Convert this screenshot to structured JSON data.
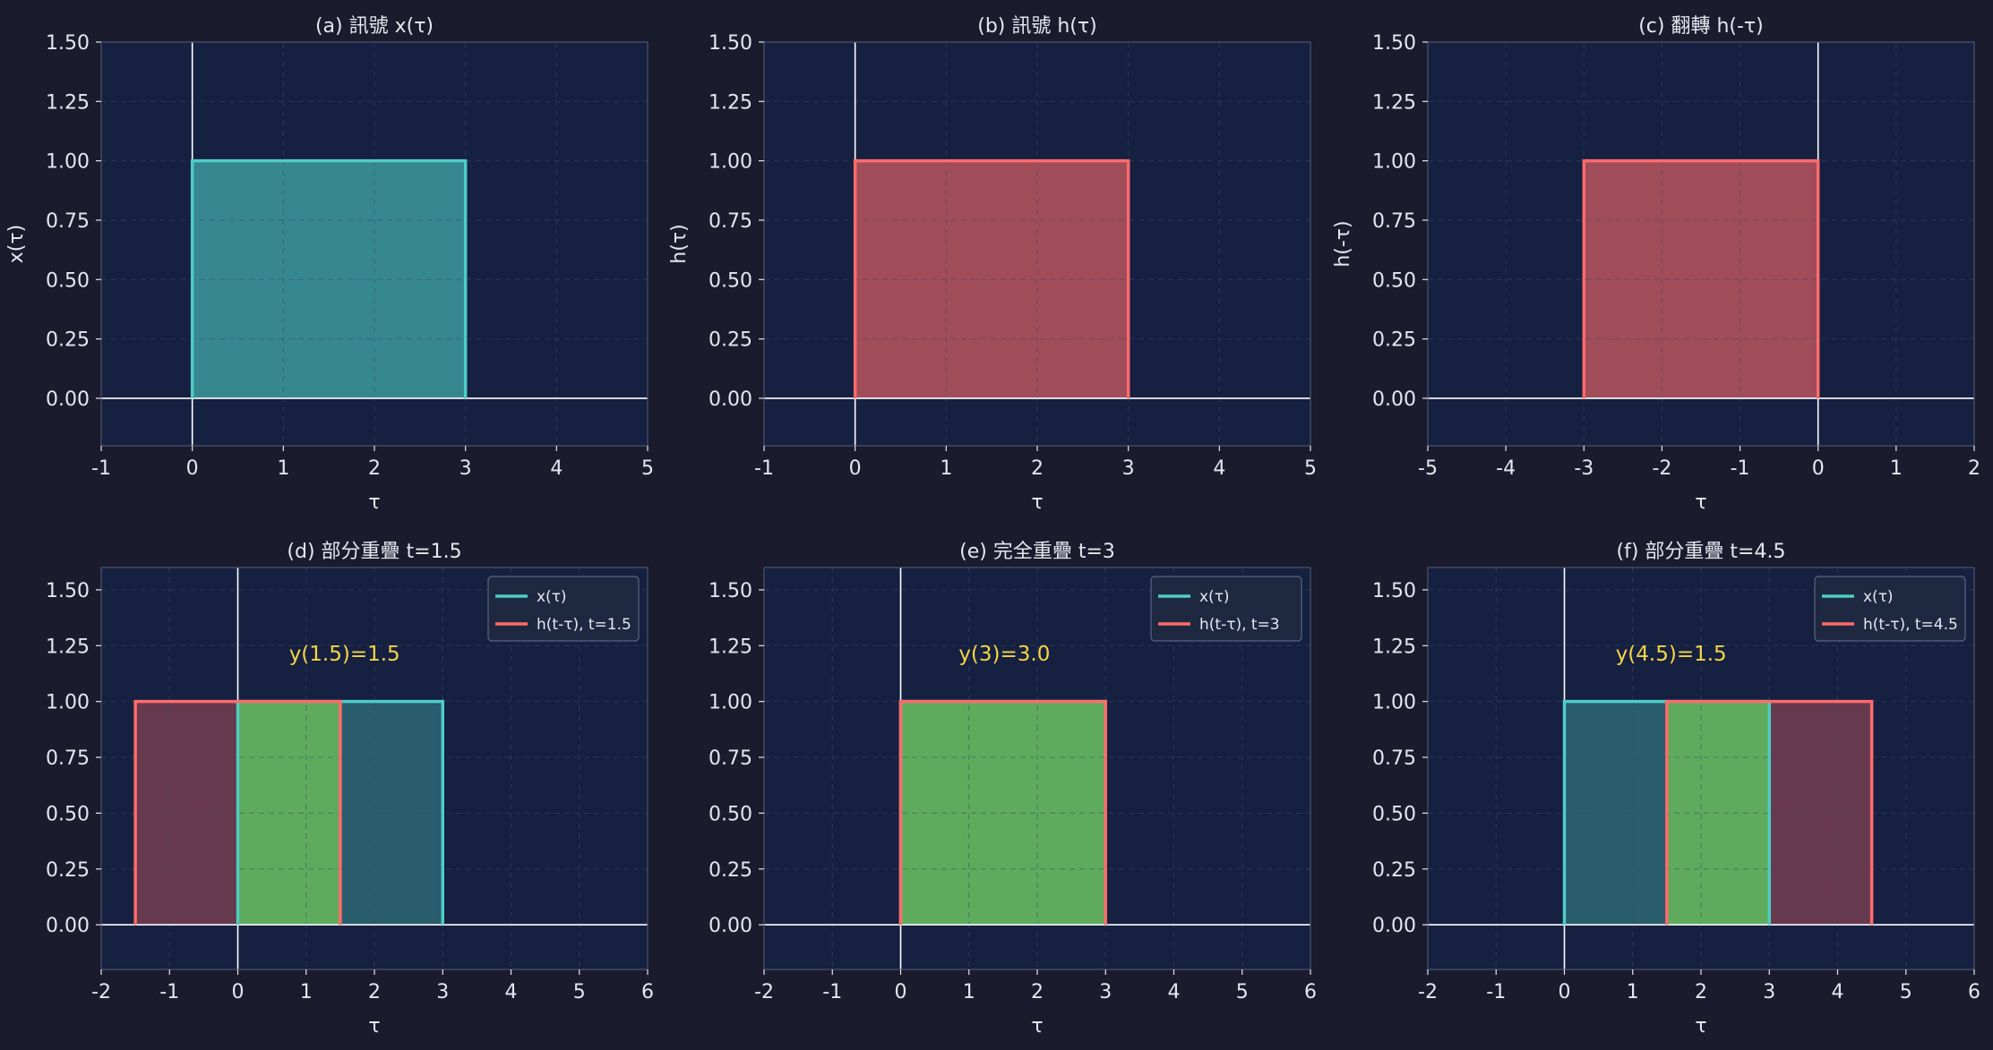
{
  "colors": {
    "background": "#1b1b2e",
    "axes_face": "#162040",
    "axes_border": "#4a5570",
    "grid": "#2a3755",
    "text": "#e6e6ee",
    "zero_line": "#ffffff",
    "x_signal": "#4ecdc4",
    "h_signal": "#ff6b6b",
    "overlap": "#5cb85c",
    "annotation": "#f5d547",
    "legend_bg": "#1e2840",
    "legend_border": "#5a6580"
  },
  "chart_data": [
    {
      "type": "area",
      "title": "(a) 訊號 x(τ)",
      "xlabel": "τ",
      "ylabel": "x(τ)",
      "xlim": [
        -1,
        5
      ],
      "ylim": [
        -0.2,
        1.5
      ],
      "xticks": [
        -1,
        0,
        1,
        2,
        3,
        4,
        5
      ],
      "yticks": [
        0,
        0.25,
        0.5,
        0.75,
        1,
        1.25,
        1.5
      ],
      "grid": true,
      "series": [
        {
          "role": "x",
          "color": "#4ecdc4",
          "from": 0,
          "to": 3,
          "value": 1
        }
      ]
    },
    {
      "type": "area",
      "title": "(b) 訊號 h(τ)",
      "xlabel": "τ",
      "ylabel": "h(τ)",
      "xlim": [
        -1,
        5
      ],
      "ylim": [
        -0.2,
        1.5
      ],
      "xticks": [
        -1,
        0,
        1,
        2,
        3,
        4,
        5
      ],
      "yticks": [
        0,
        0.25,
        0.5,
        0.75,
        1,
        1.25,
        1.5
      ],
      "grid": true,
      "series": [
        {
          "role": "h",
          "color": "#ff6b6b",
          "from": 0,
          "to": 3,
          "value": 1
        }
      ]
    },
    {
      "type": "area",
      "title": "(c) 翻轉 h(-τ)",
      "xlabel": "τ",
      "ylabel": "h(-τ)",
      "xlim": [
        -5,
        2
      ],
      "ylim": [
        -0.2,
        1.5
      ],
      "xticks": [
        -5,
        -4,
        -3,
        -2,
        -1,
        0,
        1,
        2
      ],
      "yticks": [
        0,
        0.25,
        0.5,
        0.75,
        1,
        1.25,
        1.5
      ],
      "grid": true,
      "series": [
        {
          "role": "h",
          "color": "#ff6b6b",
          "from": -3,
          "to": 0,
          "value": 1
        }
      ]
    },
    {
      "type": "area",
      "title": "(d) 部分重疊 t=1.5",
      "xlabel": "τ",
      "ylabel": "",
      "xlim": [
        -2,
        6
      ],
      "ylim": [
        -0.2,
        1.6
      ],
      "xticks": [
        -2,
        -1,
        0,
        1,
        2,
        3,
        4,
        5,
        6
      ],
      "yticks": [
        0,
        0.25,
        0.5,
        0.75,
        1,
        1.25,
        1.5
      ],
      "grid": true,
      "legend": "top-right",
      "series": [
        {
          "name": "x(τ)",
          "role": "x",
          "color": "#4ecdc4",
          "from": 0,
          "to": 3,
          "value": 1
        },
        {
          "name": "h(t-τ), t=1.5",
          "role": "h",
          "color": "#ff6b6b",
          "from": -1.5,
          "to": 1.5,
          "value": 1
        }
      ],
      "overlap": {
        "from": 0,
        "to": 1.5,
        "value": 1
      },
      "annotation": {
        "text": "y(1.5)=1.5",
        "x": 0.75,
        "y": 1.22
      }
    },
    {
      "type": "area",
      "title": "(e) 完全重疊 t=3",
      "xlabel": "τ",
      "ylabel": "",
      "xlim": [
        -2,
        6
      ],
      "ylim": [
        -0.2,
        1.6
      ],
      "xticks": [
        -2,
        -1,
        0,
        1,
        2,
        3,
        4,
        5,
        6
      ],
      "yticks": [
        0,
        0.25,
        0.5,
        0.75,
        1,
        1.25,
        1.5
      ],
      "grid": true,
      "legend": "top-right",
      "series": [
        {
          "name": "x(τ)",
          "role": "x",
          "color": "#4ecdc4",
          "from": 0,
          "to": 3,
          "value": 1
        },
        {
          "name": "h(t-τ), t=3",
          "role": "h",
          "color": "#ff6b6b",
          "from": 0,
          "to": 3,
          "value": 1
        }
      ],
      "overlap": {
        "from": 0,
        "to": 3,
        "value": 1
      },
      "annotation": {
        "text": "y(3)=3.0",
        "x": 0.85,
        "y": 1.22
      }
    },
    {
      "type": "area",
      "title": "(f) 部分重疊 t=4.5",
      "xlabel": "τ",
      "ylabel": "",
      "xlim": [
        -2,
        6
      ],
      "ylim": [
        -0.2,
        1.6
      ],
      "xticks": [
        -2,
        -1,
        0,
        1,
        2,
        3,
        4,
        5,
        6
      ],
      "yticks": [
        0,
        0.25,
        0.5,
        0.75,
        1,
        1.25,
        1.5
      ],
      "grid": true,
      "legend": "top-right",
      "series": [
        {
          "name": "x(τ)",
          "role": "x",
          "color": "#4ecdc4",
          "from": 0,
          "to": 3,
          "value": 1
        },
        {
          "name": "h(t-τ), t=4.5",
          "role": "h",
          "color": "#ff6b6b",
          "from": 1.5,
          "to": 4.5,
          "value": 1
        }
      ],
      "overlap": {
        "from": 1.5,
        "to": 3,
        "value": 1
      },
      "annotation": {
        "text": "y(4.5)=1.5",
        "x": 0.75,
        "y": 1.22
      }
    }
  ]
}
